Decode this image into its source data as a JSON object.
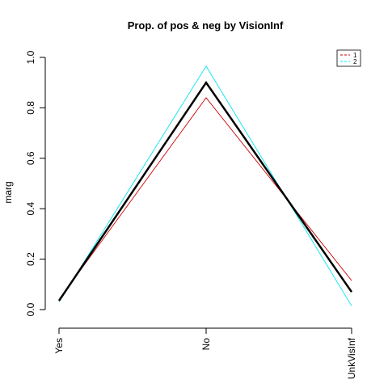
{
  "chart_data": {
    "type": "line",
    "title": "Prop. of pos & neg by VisionInf",
    "ylabel": "marg",
    "xlabel": "",
    "categories": [
      "Yes",
      "No",
      "UnkVisInf"
    ],
    "ylim": [
      0,
      1
    ],
    "yticks": [
      "0.0",
      "0.2",
      "0.4",
      "0.6",
      "0.8",
      "1.0"
    ],
    "legend_position": "top-right",
    "series": [
      {
        "name": "1",
        "values": [
          0.04,
          0.84,
          0.115
        ],
        "color": "#cc0000",
        "style": "thin"
      },
      {
        "name": "2",
        "values": [
          0.03,
          0.965,
          0.015
        ],
        "color": "#00e5ee",
        "style": "thin"
      },
      {
        "name": "",
        "values": [
          0.035,
          0.9,
          0.07
        ],
        "color": "#000000",
        "style": "thick"
      }
    ],
    "grid": false
  }
}
